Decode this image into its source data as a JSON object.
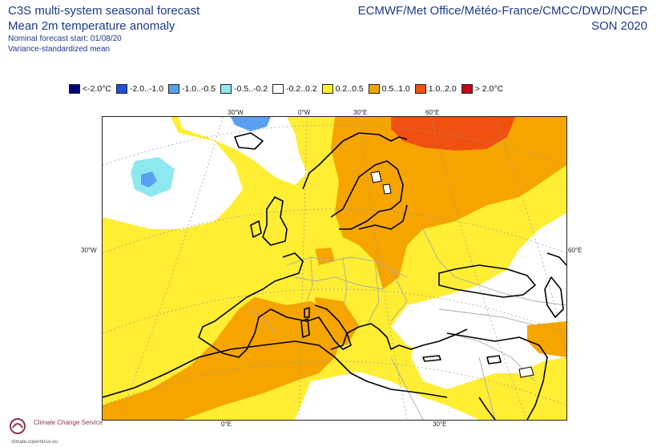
{
  "header": {
    "title": "C3S multi-system seasonal forecast",
    "subtitle": "Mean 2m temperature anomaly",
    "start": "Nominal forecast start: 01/08/20",
    "note": "Variance-standardized mean",
    "centres": "ECMWF/Met Office/Météo-France/CMCC/DWD/NCEP",
    "season": "SON 2020"
  },
  "legend": [
    {
      "label": "<-2.0°C",
      "color": "#00007a"
    },
    {
      "label": "-2.0..-1.0",
      "color": "#2050e0"
    },
    {
      "label": "-1.0..-0.5",
      "color": "#5aa0f0"
    },
    {
      "label": "-0.5..-0.2",
      "color": "#8ee8f0"
    },
    {
      "label": "-0.2..0.2",
      "color": "#ffffff"
    },
    {
      "label": "0.2..0.5",
      "color": "#ffee33"
    },
    {
      "label": "0.5..1.0",
      "color": "#f5a400"
    },
    {
      "label": "1.0..2.0",
      "color": "#f05010"
    },
    {
      "label": "> 2.0°C",
      "color": "#c80018"
    }
  ],
  "axis_labels": {
    "top_30w": "30°W",
    "top_0w": "0°W",
    "top_30e": "30°E",
    "top_60e": "60°E",
    "left_30w": "30°W",
    "right_60e": "60°E",
    "bottom_0e": "0°E",
    "bottom_30e": "30°E"
  },
  "logo": {
    "name": "Climate Change Service",
    "sub": "climate.copernicus.eu"
  }
}
